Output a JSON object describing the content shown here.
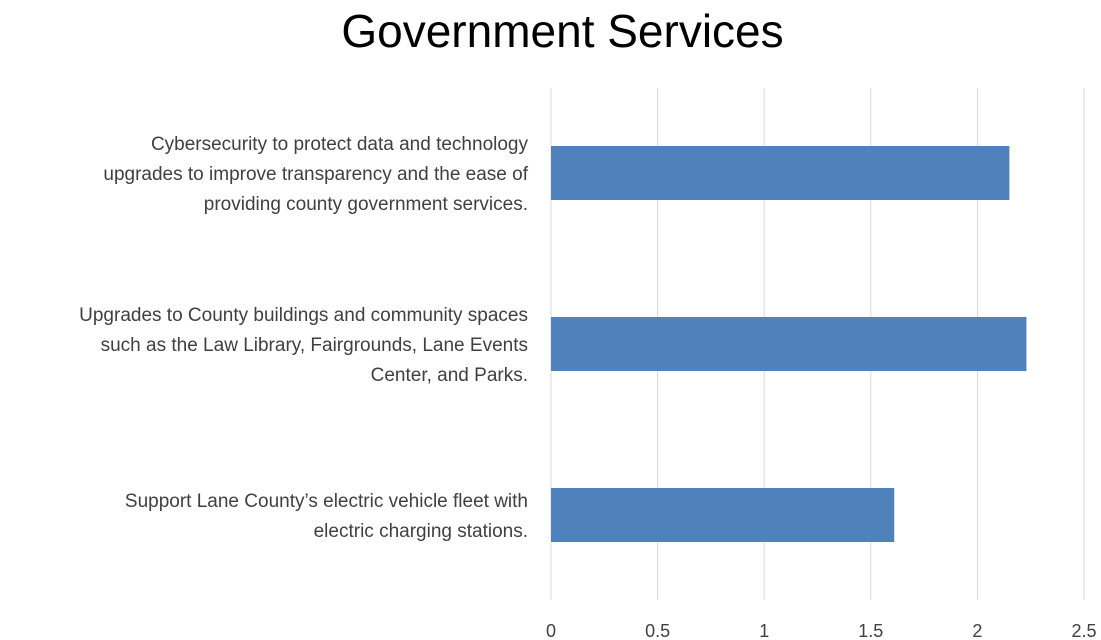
{
  "chart_data": {
    "type": "bar",
    "orientation": "horizontal",
    "title": "Government Services",
    "categories": [
      [
        "Cybersecurity to protect data and technology",
        "upgrades to improve transparency and the ease of",
        "providing county government services."
      ],
      [
        "Upgrades to County buildings and community spaces",
        "such as the Law Library, Fairgrounds, Lane Events",
        "Center, and Parks."
      ],
      [
        "Support Lane County’s electric vehicle fleet with",
        "electric charging stations."
      ]
    ],
    "values": [
      2.15,
      2.23,
      1.61
    ],
    "xlim": [
      0,
      2.5
    ],
    "xticks": [
      "0",
      "0.5",
      "1",
      "1.5",
      "2",
      "2.5"
    ],
    "xlabel": "",
    "ylabel": "",
    "grid": "vertical",
    "bar_color": "#4f81bd",
    "grid_color": "#d9d9d9"
  }
}
